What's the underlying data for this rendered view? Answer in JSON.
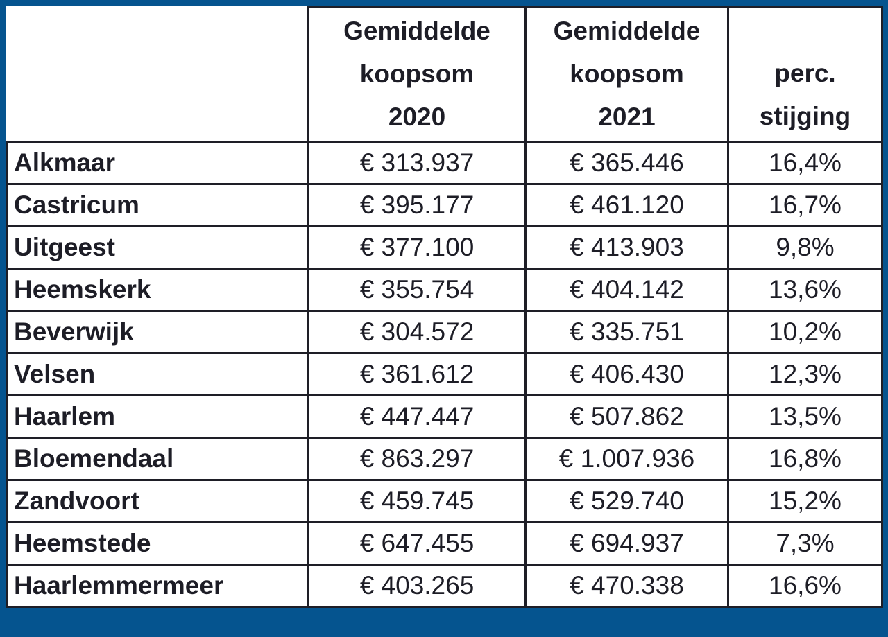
{
  "chart_data": {
    "type": "table",
    "columns": [
      "",
      "Gemiddelde koopsom 2020",
      "Gemiddelde koopsom 2021",
      "perc. stijging"
    ],
    "header_lines": [
      [],
      [
        "Gemiddelde",
        "koopsom",
        "2020"
      ],
      [
        "Gemiddelde",
        "koopsom",
        "2021"
      ],
      [
        "perc.",
        "stijging"
      ]
    ],
    "rows": [
      {
        "name": "Alkmaar",
        "y2020": "€ 313.937",
        "y2021": "€ 365.446",
        "pct": "16,4%"
      },
      {
        "name": "Castricum",
        "y2020": "€ 395.177",
        "y2021": "€ 461.120",
        "pct": "16,7%"
      },
      {
        "name": "Uitgeest",
        "y2020": "€ 377.100",
        "y2021": "€ 413.903",
        "pct": "9,8%"
      },
      {
        "name": "Heemskerk",
        "y2020": "€ 355.754",
        "y2021": "€ 404.142",
        "pct": "13,6%"
      },
      {
        "name": "Beverwijk",
        "y2020": "€ 304.572",
        "y2021": "€ 335.751",
        "pct": "10,2%"
      },
      {
        "name": "Velsen",
        "y2020": "€ 361.612",
        "y2021": "€ 406.430",
        "pct": "12,3%"
      },
      {
        "name": "Haarlem",
        "y2020": "€ 447.447",
        "y2021": "€ 507.862",
        "pct": "13,5%"
      },
      {
        "name": "Bloemendaal",
        "y2020": "€ 863.297",
        "y2021": "€ 1.007.936",
        "pct": "16,8%"
      },
      {
        "name": "Zandvoort",
        "y2020": "€ 459.745",
        "y2021": "€ 529.740",
        "pct": "15,2%"
      },
      {
        "name": "Heemstede",
        "y2020": "€ 647.455",
        "y2021": "€ 694.937",
        "pct": "7,3%"
      },
      {
        "name": "Haarlemmermeer",
        "y2020": "€ 403.265",
        "y2021": "€ 470.338",
        "pct": "16,6%"
      }
    ]
  },
  "colors": {
    "frame": "#05548f",
    "grid": "#1e1e26",
    "text": "#1d1d26",
    "cell_background": "#ffffff"
  }
}
